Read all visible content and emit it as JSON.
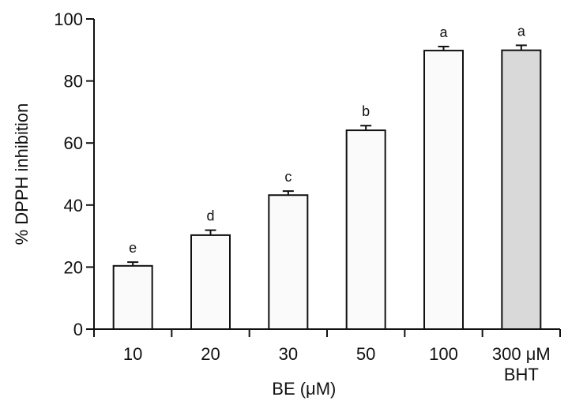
{
  "chart_data": {
    "type": "bar",
    "title": "",
    "xlabel": "BE (μM)",
    "ylabel": "% DPPH inhibition",
    "ylim": [
      0,
      100
    ],
    "yticks": [
      "0",
      "20",
      "40",
      "60",
      "80",
      "100"
    ],
    "grid": false,
    "categories": [
      "10",
      "20",
      "30",
      "50",
      "100",
      "300 μM BHT"
    ],
    "category_labels": [
      {
        "line1": "10",
        "line2": ""
      },
      {
        "line1": "20",
        "line2": ""
      },
      {
        "line1": "30",
        "line2": ""
      },
      {
        "line1": "50",
        "line2": ""
      },
      {
        "line1": "100",
        "line2": ""
      },
      {
        "line1": "300 μM",
        "line2": "BHT"
      }
    ],
    "values": [
      20.4,
      30.3,
      43.2,
      64.1,
      89.8,
      89.9
    ],
    "errors": [
      1.2,
      1.6,
      1.3,
      1.5,
      1.3,
      1.6
    ],
    "significance_letters": [
      "e",
      "d",
      "c",
      "b",
      "a",
      "a"
    ],
    "bar_colors": [
      "#fafafa",
      "#fafafa",
      "#fafafa",
      "#fafafa",
      "#fafafa",
      "#d9d9d9"
    ]
  }
}
